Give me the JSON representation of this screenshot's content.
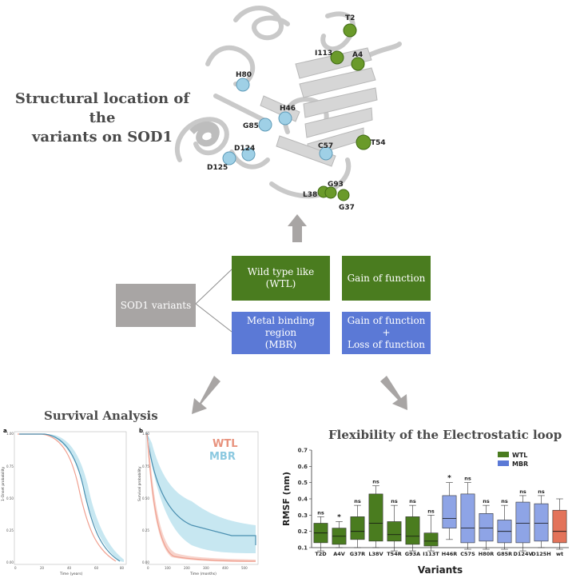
{
  "structure": {
    "title_line1": "Structural location of the",
    "title_line2": "variants on SOD1",
    "residues_green": [
      "T2",
      "I113",
      "A4",
      "T54",
      "L38",
      "G93",
      "G37"
    ],
    "residues_blue": [
      "H80",
      "H46",
      "G85",
      "C57",
      "D124",
      "D125"
    ]
  },
  "classification": {
    "root": "SOD1 variants",
    "wtl_line1": "Wild type like",
    "wtl_line2": "(WTL)",
    "wtl_effect": "Gain of function",
    "mbr_line1": "Metal binding",
    "mbr_line2": "region",
    "mbr_line3": "(MBR)",
    "mbr_effect_line1": "Gain of function",
    "mbr_effect_line2": "+",
    "mbr_effect_line3": "Loss of function"
  },
  "survival": {
    "title": "Survival Analysis",
    "panel_a_label": "a",
    "panel_b_label": "b",
    "a_ylabel": "1-Onset probability",
    "a_xlabel": "Time (years)",
    "b_ylabel": "Survival probability",
    "b_xlabel": "Time (months)",
    "legend_wtl": "WTL",
    "legend_mbr": "MBR",
    "a_xticks": [
      "0",
      "20",
      "40",
      "60",
      "80"
    ],
    "a_yticks": [
      "1.00",
      "0.75",
      "0.50",
      "0.25",
      "0.00"
    ],
    "b_xticks": [
      "0",
      "100",
      "200",
      "300",
      "400",
      "500"
    ],
    "b_yticks": [
      "1.00",
      "0.75",
      "0.50",
      "0.25",
      "0.00"
    ]
  },
  "chart_data": {
    "type": "box",
    "title": "Flexibility of the Electrostatic loop",
    "xlabel": "Variants",
    "ylabel": "RMSF (nm)",
    "ylim": [
      0.1,
      0.7
    ],
    "yticks": [
      "0.7",
      "0.6",
      "0.5",
      "0.4",
      "0.3",
      "0.2",
      "0.1"
    ],
    "legend": [
      "WTL",
      "MBR"
    ],
    "colors": {
      "WTL": "#4a7c1f",
      "MBR": "#8ea4e6",
      "wt": "#e3735a"
    },
    "categories": [
      "T2D",
      "A4V",
      "G37R",
      "L38V",
      "T54R",
      "G93A",
      "I113T",
      "H46R",
      "C57S",
      "H80R",
      "G85R",
      "D124V",
      "D125H",
      "wt"
    ],
    "groups": [
      "WTL",
      "WTL",
      "WTL",
      "WTL",
      "WTL",
      "WTL",
      "WTL",
      "MBR",
      "MBR",
      "MBR",
      "MBR",
      "MBR",
      "MBR",
      "wt"
    ],
    "significance": [
      "ns",
      "*",
      "ns",
      "ns",
      "ns",
      "ns",
      "ns",
      "*",
      "ns",
      "ns",
      "ns",
      "ns",
      "ns",
      ""
    ],
    "boxes": [
      {
        "min": 0.08,
        "q1": 0.13,
        "median": 0.19,
        "q3": 0.25,
        "max": 0.29
      },
      {
        "min": 0.1,
        "q1": 0.12,
        "median": 0.17,
        "q3": 0.22,
        "max": 0.26
      },
      {
        "min": 0.1,
        "q1": 0.15,
        "median": 0.2,
        "q3": 0.29,
        "max": 0.36
      },
      {
        "min": 0.1,
        "q1": 0.14,
        "median": 0.25,
        "q3": 0.43,
        "max": 0.48
      },
      {
        "min": 0.08,
        "q1": 0.14,
        "median": 0.18,
        "q3": 0.26,
        "max": 0.36
      },
      {
        "min": 0.07,
        "q1": 0.12,
        "median": 0.17,
        "q3": 0.29,
        "max": 0.36
      },
      {
        "min": 0.06,
        "q1": 0.11,
        "median": 0.14,
        "q3": 0.19,
        "max": 0.3
      },
      {
        "min": 0.15,
        "q1": 0.22,
        "median": 0.28,
        "q3": 0.42,
        "max": 0.5
      },
      {
        "min": 0.09,
        "q1": 0.13,
        "median": 0.22,
        "q3": 0.43,
        "max": 0.5
      },
      {
        "min": 0.09,
        "q1": 0.14,
        "median": 0.22,
        "q3": 0.31,
        "max": 0.36
      },
      {
        "min": 0.09,
        "q1": 0.13,
        "median": 0.2,
        "q3": 0.27,
        "max": 0.36
      },
      {
        "min": 0.07,
        "q1": 0.13,
        "median": 0.25,
        "q3": 0.38,
        "max": 0.42
      },
      {
        "min": 0.1,
        "q1": 0.14,
        "median": 0.25,
        "q3": 0.37,
        "max": 0.42
      },
      {
        "min": 0.09,
        "q1": 0.13,
        "median": 0.2,
        "q3": 0.33,
        "max": 0.4
      }
    ]
  }
}
